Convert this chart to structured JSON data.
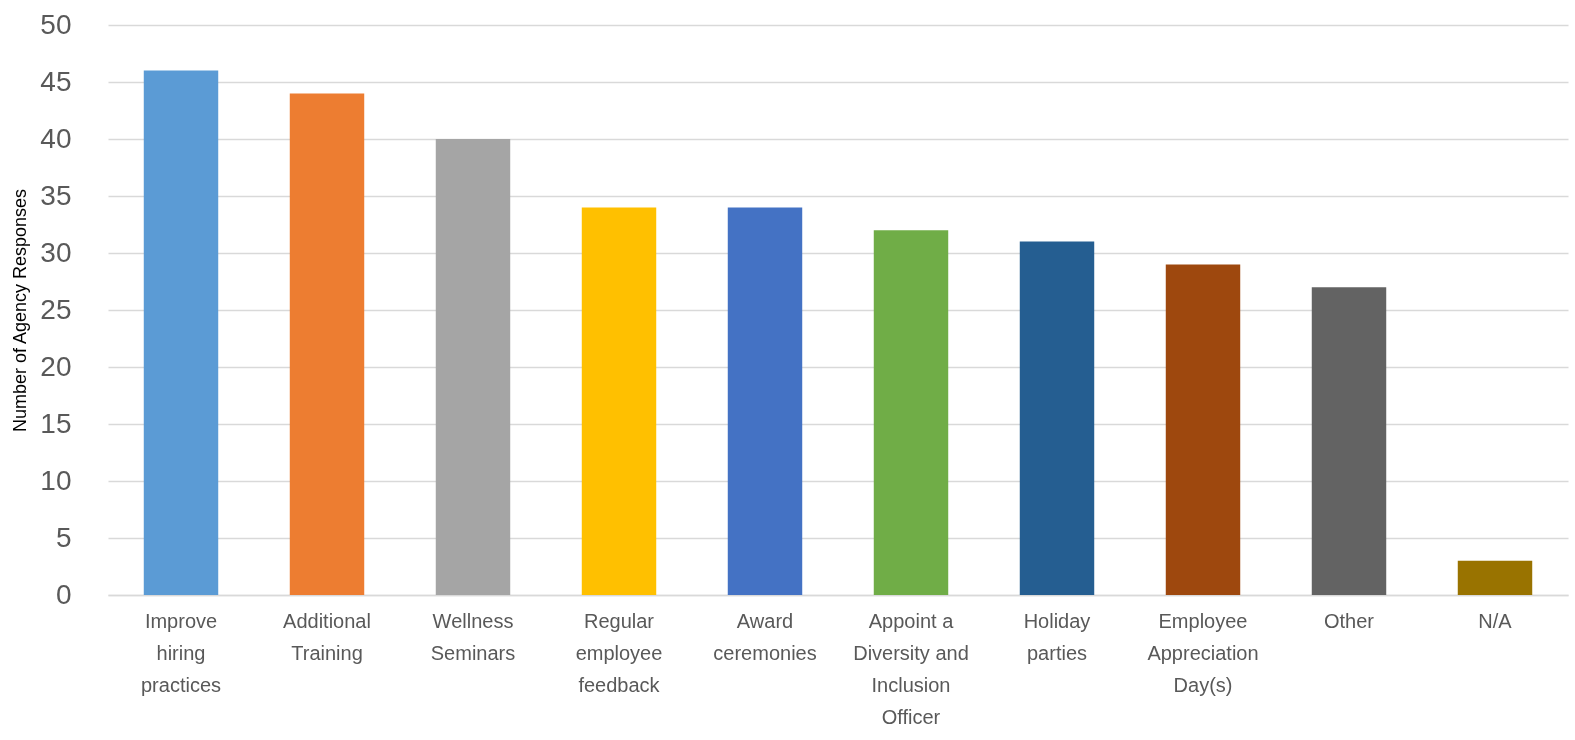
{
  "chart_data": {
    "type": "bar",
    "ylabel": "Number of Agency Responses",
    "categories": [
      "Improve hiring practices",
      "Additional Training",
      "Wellness Seminars",
      "Regular employee feedback",
      "Award ceremonies",
      "Appoint a Diversity and Inclusion Officer",
      "Holiday parties",
      "Employee Appreciation Day(s)",
      "Other",
      "N/A"
    ],
    "values": [
      46,
      44,
      40,
      34,
      34,
      32,
      31,
      29,
      27,
      3
    ],
    "colors": [
      "#5b9bd5",
      "#ed7d31",
      "#a5a5a5",
      "#ffc000",
      "#4472c4",
      "#70ad47",
      "#255e91",
      "#9e480e",
      "#636363",
      "#997300"
    ],
    "ylim": [
      0,
      50
    ],
    "yticks": [
      0,
      5,
      10,
      15,
      20,
      25,
      30,
      35,
      40,
      45,
      50
    ],
    "grid": "y"
  }
}
